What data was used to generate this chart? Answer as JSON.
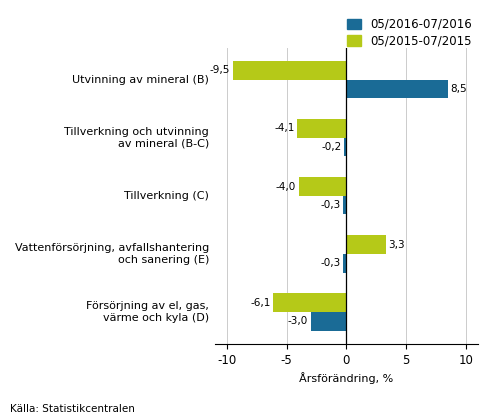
{
  "categories": [
    "Utvinning av mineral (B)",
    "Tillverkning och utvinning\nav mineral (B-C)",
    "Tillverkning (C)",
    "Vattenförsörjning, avfallshantering\noch sanering (E)",
    "Försörjning av el, gas,\nvärme och kyla (D)"
  ],
  "series_2016": [
    8.5,
    -0.2,
    -0.3,
    -0.3,
    -3.0
  ],
  "series_2015": [
    -9.5,
    -4.1,
    -4.0,
    3.3,
    -6.1
  ],
  "color_2016": "#1a6b96",
  "color_2015": "#b5c918",
  "legend_2016": "05/2016-07/2016",
  "legend_2015": "05/2015-07/2015",
  "xlabel": "Årsförändring, %",
  "xlim": [
    -11,
    11
  ],
  "xticks": [
    -10,
    -5,
    0,
    5,
    10
  ],
  "source": "Källa: Statistikcentralen",
  "bar_height": 0.32,
  "value_fontsize": 7.5,
  "label_fontsize": 8.0,
  "legend_fontsize": 8.5,
  "tick_label_fontsize": 8.5
}
